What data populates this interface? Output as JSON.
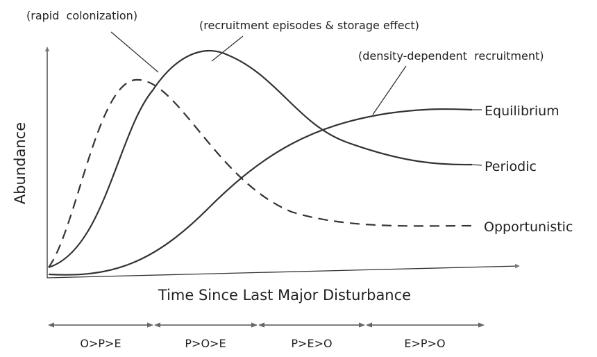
{
  "annotations": [
    "(rapid  colonization)",
    "(recruitment episodes & storage effect)",
    "(density-dependent  recruitment)"
  ],
  "curve_labels": [
    "Equilibrium",
    "Periodic",
    "Opportunistic"
  ],
  "y_axis_label": "Abundance",
  "x_axis_label": "Time Since Last Major Disturbance",
  "phases": [
    "O>P>E",
    "P>O>E",
    "P>E>O",
    "E>P>O"
  ]
}
